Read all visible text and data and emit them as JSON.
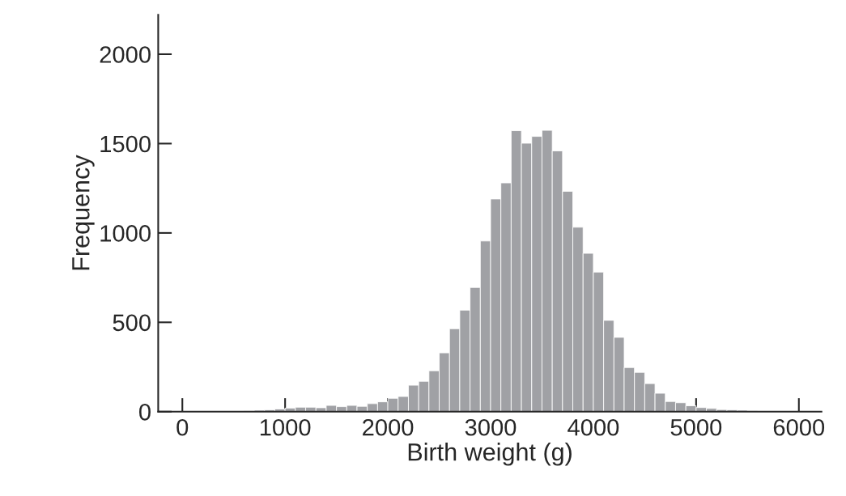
{
  "chart_data": {
    "type": "histogram",
    "xlabel": "Birth weight (g)",
    "ylabel": "Frequency",
    "color": "#a0a1a5",
    "bins": [
      600,
      700,
      800,
      900,
      1000,
      1100,
      1200,
      1300,
      1400,
      1500,
      1600,
      1700,
      1800,
      1900,
      2000,
      2100,
      2200,
      2300,
      2400,
      2500,
      2600,
      2700,
      2800,
      2900,
      3000,
      3100,
      3200,
      3300,
      3400,
      3500,
      3600,
      3700,
      3800,
      3900,
      4000,
      4100,
      4200,
      4300,
      4400,
      4500,
      4600,
      4700,
      4800,
      4900,
      5000,
      5100,
      5200,
      5300,
      5400,
      5500,
      5600,
      5700,
      5800
    ],
    "values": [
      5,
      8,
      10,
      15,
      20,
      25,
      25,
      22,
      35,
      28,
      35,
      30,
      45,
      55,
      75,
      85,
      148,
      170,
      229,
      329,
      464,
      568,
      695,
      955,
      1190,
      1280,
      1572,
      1502,
      1540,
      1574,
      1459,
      1233,
      1032,
      886,
      781,
      511,
      416,
      247,
      220,
      157,
      103,
      57,
      50,
      33,
      23,
      18,
      12,
      10,
      8,
      6,
      4,
      3
    ],
    "xlim": [
      -235,
      6220
    ],
    "ylim": [
      0,
      2220
    ],
    "xticks": [
      0,
      1000,
      2000,
      3000,
      4000,
      5000,
      6000
    ],
    "yticks": [
      0,
      500,
      1000,
      1500,
      2000
    ],
    "grid": false
  }
}
